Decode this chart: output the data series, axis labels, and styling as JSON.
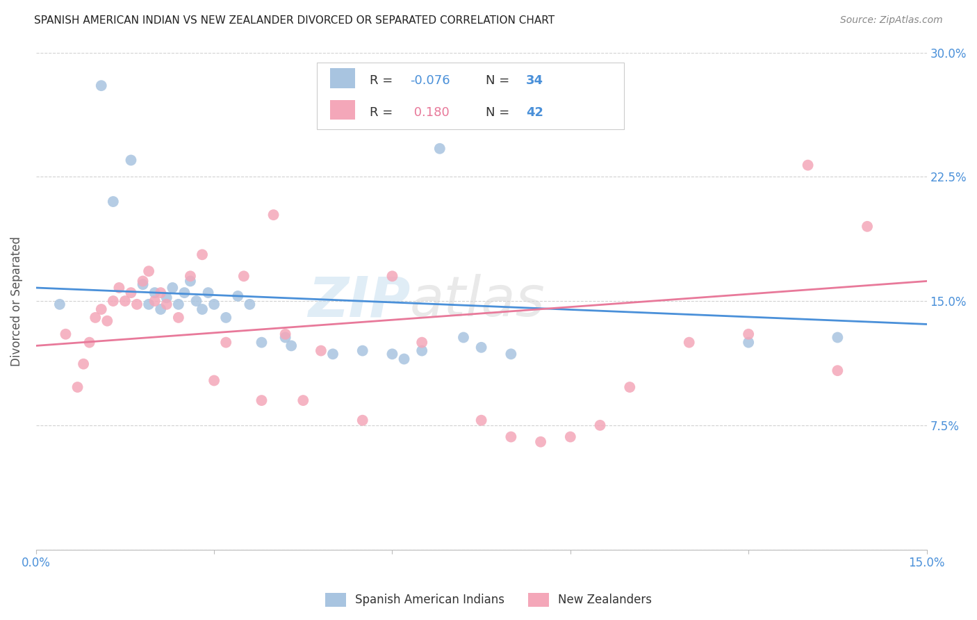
{
  "title": "SPANISH AMERICAN INDIAN VS NEW ZEALANDER DIVORCED OR SEPARATED CORRELATION CHART",
  "source": "Source: ZipAtlas.com",
  "ylabel": "Divorced or Separated",
  "xlim": [
    0.0,
    0.15
  ],
  "ylim": [
    0.0,
    0.3
  ],
  "xtick_positions": [
    0.0,
    0.03,
    0.06,
    0.09,
    0.12,
    0.15
  ],
  "xtick_labels": [
    "0.0%",
    "",
    "",
    "",
    "",
    "15.0%"
  ],
  "ytick_positions": [
    0.0,
    0.075,
    0.15,
    0.225,
    0.3
  ],
  "ytick_labels_right": [
    "",
    "7.5%",
    "15.0%",
    "22.5%",
    "30.0%"
  ],
  "blue_dot_color": "#a8c4e0",
  "pink_dot_color": "#f4a7b9",
  "blue_line_color": "#4a90d9",
  "pink_line_color": "#e8799a",
  "value_text_color": "#4a90d9",
  "label_text_color": "#333333",
  "r_blue": -0.076,
  "n_blue": 34,
  "r_pink": 0.18,
  "n_pink": 42,
  "legend_label_blue": "Spanish American Indians",
  "legend_label_pink": "New Zealanders",
  "watermark": "ZIPatlas",
  "blue_trend_y0": 0.158,
  "blue_trend_y1": 0.136,
  "pink_trend_y0": 0.123,
  "pink_trend_y1": 0.162,
  "blue_scatter_x": [
    0.004,
    0.011,
    0.013,
    0.016,
    0.018,
    0.019,
    0.02,
    0.021,
    0.022,
    0.023,
    0.024,
    0.025,
    0.026,
    0.027,
    0.028,
    0.029,
    0.03,
    0.032,
    0.034,
    0.036,
    0.038,
    0.042,
    0.043,
    0.05,
    0.055,
    0.06,
    0.062,
    0.065,
    0.068,
    0.072,
    0.075,
    0.08,
    0.12,
    0.135
  ],
  "blue_scatter_y": [
    0.148,
    0.28,
    0.21,
    0.235,
    0.16,
    0.148,
    0.155,
    0.145,
    0.152,
    0.158,
    0.148,
    0.155,
    0.162,
    0.15,
    0.145,
    0.155,
    0.148,
    0.14,
    0.153,
    0.148,
    0.125,
    0.128,
    0.123,
    0.118,
    0.12,
    0.118,
    0.115,
    0.12,
    0.242,
    0.128,
    0.122,
    0.118,
    0.125,
    0.128
  ],
  "pink_scatter_x": [
    0.005,
    0.007,
    0.008,
    0.009,
    0.01,
    0.011,
    0.012,
    0.013,
    0.014,
    0.015,
    0.016,
    0.017,
    0.018,
    0.019,
    0.02,
    0.021,
    0.022,
    0.024,
    0.026,
    0.028,
    0.03,
    0.032,
    0.035,
    0.038,
    0.04,
    0.042,
    0.045,
    0.048,
    0.055,
    0.06,
    0.065,
    0.075,
    0.08,
    0.085,
    0.09,
    0.095,
    0.1,
    0.11,
    0.12,
    0.13,
    0.135,
    0.14
  ],
  "pink_scatter_y": [
    0.13,
    0.098,
    0.112,
    0.125,
    0.14,
    0.145,
    0.138,
    0.15,
    0.158,
    0.15,
    0.155,
    0.148,
    0.162,
    0.168,
    0.15,
    0.155,
    0.148,
    0.14,
    0.165,
    0.178,
    0.102,
    0.125,
    0.165,
    0.09,
    0.202,
    0.13,
    0.09,
    0.12,
    0.078,
    0.165,
    0.125,
    0.078,
    0.068,
    0.065,
    0.068,
    0.075,
    0.098,
    0.125,
    0.13,
    0.232,
    0.108,
    0.195
  ]
}
